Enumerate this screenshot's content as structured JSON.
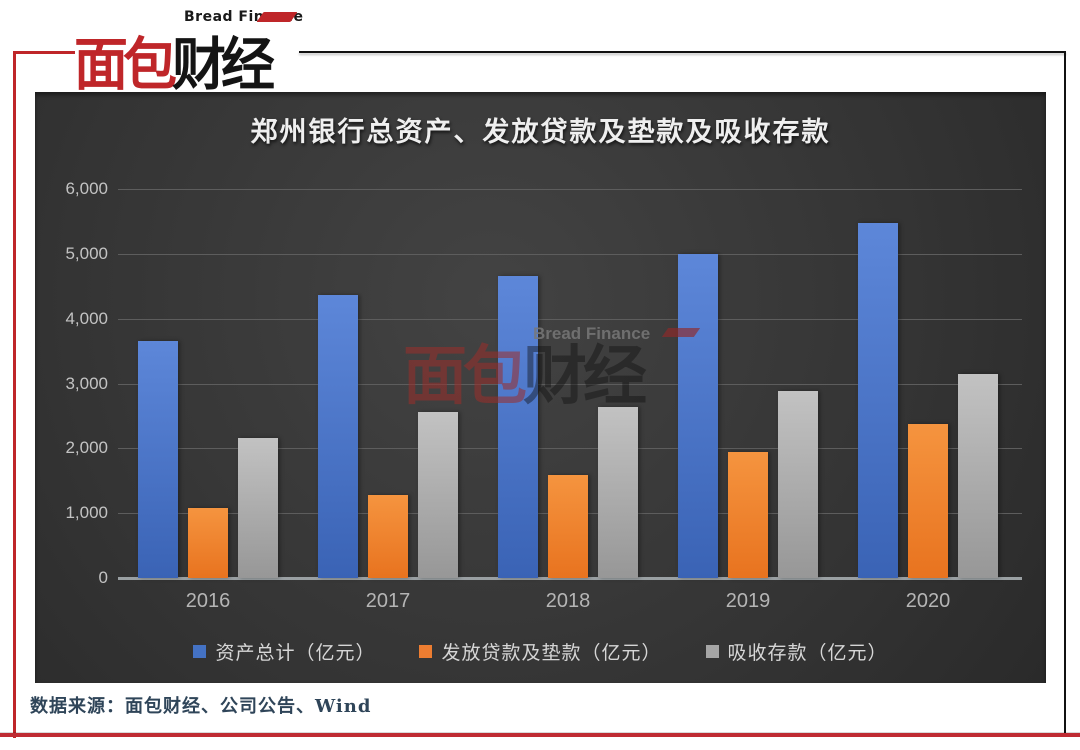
{
  "logo": {
    "bread_finance": "Bread Finance",
    "cn_red": "面包",
    "cn_black": "财经"
  },
  "watermark": {
    "bread_finance": "Bread Finance",
    "cn_red": "面包",
    "cn_black": "财经"
  },
  "colors": {
    "accent_red": "#bf2629",
    "bottom_bar_red": "#bf2b33",
    "panel_dark": "#343434",
    "gridline": "#5d5d5d",
    "axis_line": "#9aa0a3",
    "title_text": "#efefef",
    "tick_text": "#c3c3c3",
    "legend_text": "#d6d6d6",
    "source_text": "#2f4559"
  },
  "chart_data": {
    "type": "bar",
    "title": "郑州银行总资产、发放贷款及垫款及吸收存款",
    "categories": [
      "2016",
      "2017",
      "2018",
      "2019",
      "2020"
    ],
    "series": [
      {
        "name": "资产总计（亿元）",
        "color": "#4472c4",
        "gradient": [
          "#5d87d9",
          "#3a63b5"
        ],
        "values": [
          3660,
          4360,
          4660,
          5000,
          5480
        ]
      },
      {
        "name": "发放贷款及垫款（亿元）",
        "color": "#ed7d31",
        "gradient": [
          "#f5943f",
          "#e8731f"
        ],
        "values": [
          1080,
          1280,
          1590,
          1950,
          2370
        ]
      },
      {
        "name": "吸收存款（亿元）",
        "color": "#a5a5a5",
        "gradient": [
          "#c2c2c2",
          "#979797"
        ],
        "values": [
          2160,
          2560,
          2640,
          2890,
          3150
        ]
      }
    ],
    "ylim": [
      0,
      6000
    ],
    "ytick_step": 1000,
    "ytick_labels": [
      "0",
      "1,000",
      "2,000",
      "3,000",
      "4,000",
      "5,000",
      "6,000"
    ],
    "xlabel": "",
    "ylabel": "",
    "grid": true,
    "legend_position": "bottom"
  },
  "footer": {
    "source_note": "数据来源：面包财经、公司公告、Wind"
  }
}
